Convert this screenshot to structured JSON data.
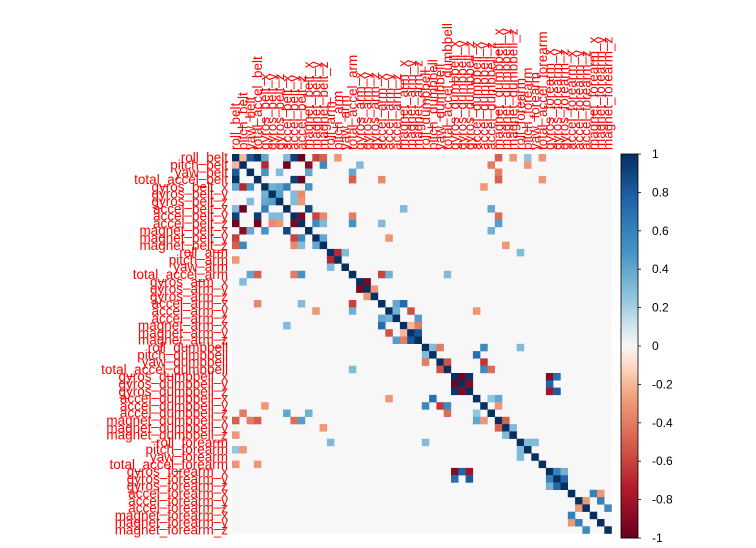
{
  "chart_data": {
    "type": "heatmap",
    "title": "",
    "variables": [
      "roll_belt",
      "pitch_belt",
      "yaw_belt",
      "total_accel_belt",
      "gyros_belt_x",
      "gyros_belt_y",
      "gyros_belt_z",
      "accel_belt_x",
      "accel_belt_y",
      "accel_belt_z",
      "magnet_belt_x",
      "magnet_belt_y",
      "magnet_belt_z",
      "roll_arm",
      "pitch_arm",
      "yaw_arm",
      "total_accel_arm",
      "gyros_arm_x",
      "gyros_arm_y",
      "gyros_arm_z",
      "accel_arm_x",
      "accel_arm_y",
      "accel_arm_z",
      "magnet_arm_x",
      "magnet_arm_y",
      "magnet_arm_z",
      "roll_dumbbell",
      "pitch_dumbbell",
      "yaw_dumbbell",
      "total_accel_dumbbell",
      "gyros_dumbbell_x",
      "gyros_dumbbell_y",
      "gyros_dumbbell_z",
      "accel_dumbbell_x",
      "accel_dumbbell_y",
      "accel_dumbbell_z",
      "magnet_dumbbell_x",
      "magnet_dumbbell_y",
      "magnet_dumbbell_z",
      "roll_forearm",
      "pitch_forearm",
      "yaw_forearm",
      "total_accel_forearm",
      "gyros_forearm_x",
      "gyros_forearm_y",
      "gyros_forearm_z",
      "accel_forearm_x",
      "accel_forearm_y",
      "accel_forearm_z",
      "magnet_forearm_x",
      "magnet_forearm_y",
      "magnet_forearm_z"
    ],
    "correlations": [
      {
        "row": 0,
        "col": 2,
        "value": 0.8
      },
      {
        "row": 0,
        "col": 3,
        "value": 0.98
      },
      {
        "row": 0,
        "col": 9,
        "value": -0.99
      },
      {
        "row": 0,
        "col": 8,
        "value": 0.92
      },
      {
        "row": 0,
        "col": 7,
        "value": 0.3
      },
      {
        "row": 0,
        "col": 11,
        "value": -0.6
      },
      {
        "row": 0,
        "col": 12,
        "value": -0.5
      },
      {
        "row": 0,
        "col": 4,
        "value": 0.4
      },
      {
        "row": 0,
        "col": 1,
        "value": -0.2
      },
      {
        "row": 3,
        "col": 8,
        "value": 0.93
      },
      {
        "row": 3,
        "col": 9,
        "value": -0.97
      },
      {
        "row": 8,
        "col": 9,
        "value": -0.93
      },
      {
        "row": 1,
        "col": 7,
        "value": -0.97
      },
      {
        "row": 1,
        "col": 10,
        "value": -0.88
      },
      {
        "row": 1,
        "col": 4,
        "value": -0.7
      },
      {
        "row": 7,
        "col": 10,
        "value": 0.89
      },
      {
        "row": 1,
        "col": 12,
        "value": 0.55
      },
      {
        "row": 2,
        "col": 4,
        "value": 0.5
      },
      {
        "row": 2,
        "col": 10,
        "value": 0.4
      },
      {
        "row": 2,
        "col": 6,
        "value": 0.3
      },
      {
        "row": 4,
        "col": 5,
        "value": 0.35
      },
      {
        "row": 4,
        "col": 6,
        "value": 0.4
      },
      {
        "row": 5,
        "col": 6,
        "value": 0.45
      },
      {
        "row": 4,
        "col": 7,
        "value": 0.6
      },
      {
        "row": 4,
        "col": 10,
        "value": 0.5
      },
      {
        "row": 5,
        "col": 8,
        "value": 0.3
      },
      {
        "row": 5,
        "col": 9,
        "value": -0.35
      },
      {
        "row": 6,
        "col": 8,
        "value": 0.3
      },
      {
        "row": 6,
        "col": 9,
        "value": -0.3
      },
      {
        "row": 11,
        "col": 12,
        "value": 0.4
      },
      {
        "row": 8,
        "col": 11,
        "value": -0.6
      },
      {
        "row": 9,
        "col": 11,
        "value": 0.55
      },
      {
        "row": 8,
        "col": 12,
        "value": -0.35
      },
      {
        "row": 9,
        "col": 12,
        "value": 0.3
      },
      {
        "row": 13,
        "col": 14,
        "value": -0.7
      },
      {
        "row": 13,
        "col": 15,
        "value": 0.3
      },
      {
        "row": 16,
        "col": 20,
        "value": -0.6
      },
      {
        "row": 16,
        "col": 21,
        "value": 0.35
      },
      {
        "row": 17,
        "col": 18,
        "value": -0.92
      },
      {
        "row": 18,
        "col": 19,
        "value": -0.3
      },
      {
        "row": 20,
        "col": 23,
        "value": 0.72
      },
      {
        "row": 20,
        "col": 22,
        "value": 0.4
      },
      {
        "row": 21,
        "col": 22,
        "value": 0.35
      },
      {
        "row": 21,
        "col": 24,
        "value": -0.55
      },
      {
        "row": 22,
        "col": 25,
        "value": 0.45
      },
      {
        "row": 23,
        "col": 25,
        "value": -0.4
      },
      {
        "row": 23,
        "col": 24,
        "value": -0.2
      },
      {
        "row": 24,
        "col": 25,
        "value": 0.82
      },
      {
        "row": 26,
        "col": 27,
        "value": 0.3
      },
      {
        "row": 26,
        "col": 28,
        "value": -0.4
      },
      {
        "row": 28,
        "col": 29,
        "value": -0.55
      },
      {
        "row": 28,
        "col": 34,
        "value": -0.65
      },
      {
        "row": 27,
        "col": 33,
        "value": 0.7
      },
      {
        "row": 26,
        "col": 34,
        "value": 0.55
      },
      {
        "row": 29,
        "col": 34,
        "value": 0.55
      },
      {
        "row": 29,
        "col": 35,
        "value": -0.45
      },
      {
        "row": 30,
        "col": 31,
        "value": -0.97
      },
      {
        "row": 31,
        "col": 32,
        "value": -0.9
      },
      {
        "row": 30,
        "col": 32,
        "value": 0.97
      },
      {
        "row": 30,
        "col": 43,
        "value": -0.9
      },
      {
        "row": 30,
        "col": 44,
        "value": 0.7
      },
      {
        "row": 31,
        "col": 43,
        "value": 0.75
      },
      {
        "row": 32,
        "col": 43,
        "value": -0.8
      },
      {
        "row": 32,
        "col": 44,
        "value": 0.8
      },
      {
        "row": 33,
        "col": 35,
        "value": 0.25
      },
      {
        "row": 33,
        "col": 36,
        "value": 0.4
      },
      {
        "row": 34,
        "col": 36,
        "value": -0.3
      },
      {
        "row": 36,
        "col": 37,
        "value": -0.5
      },
      {
        "row": 37,
        "col": 38,
        "value": 0.3
      },
      {
        "row": 39,
        "col": 40,
        "value": 0.3
      },
      {
        "row": 39,
        "col": 41,
        "value": 0.3
      },
      {
        "row": 43,
        "col": 44,
        "value": 0.6
      },
      {
        "row": 44,
        "col": 45,
        "value": 0.75
      },
      {
        "row": 43,
        "col": 45,
        "value": 0.35
      },
      {
        "row": 46,
        "col": 49,
        "value": 0.6
      },
      {
        "row": 47,
        "col": 50,
        "value": 0.6
      },
      {
        "row": 47,
        "col": 48,
        "value": -0.3
      },
      {
        "row": 48,
        "col": 51,
        "value": 0.55
      },
      {
        "row": 46,
        "col": 50,
        "value": -0.3
      },
      {
        "row": 2,
        "col": 36,
        "value": -0.4
      },
      {
        "row": 0,
        "col": 36,
        "value": -0.5
      },
      {
        "row": 3,
        "col": 36,
        "value": -0.5
      },
      {
        "row": 7,
        "col": 35,
        "value": 0.4
      },
      {
        "row": 1,
        "col": 35,
        "value": -0.4
      },
      {
        "row": 0,
        "col": 38,
        "value": -0.3
      },
      {
        "row": 8,
        "col": 36,
        "value": -0.45
      },
      {
        "row": 9,
        "col": 36,
        "value": 0.45
      },
      {
        "row": 4,
        "col": 34,
        "value": -0.3
      },
      {
        "row": 10,
        "col": 35,
        "value": 0.35
      },
      {
        "row": 12,
        "col": 37,
        "value": -0.3
      },
      {
        "row": 0,
        "col": 14,
        "value": -0.3
      },
      {
        "row": 1,
        "col": 17,
        "value": 0.3
      },
      {
        "row": 3,
        "col": 20,
        "value": -0.35
      },
      {
        "row": 7,
        "col": 23,
        "value": 0.3
      },
      {
        "row": 9,
        "col": 20,
        "value": 0.3
      },
      {
        "row": 2,
        "col": 16,
        "value": 0.4
      },
      {
        "row": 3,
        "col": 16,
        "value": -0.5
      },
      {
        "row": 8,
        "col": 16,
        "value": -0.4
      },
      {
        "row": 9,
        "col": 16,
        "value": 0.5
      },
      {
        "row": 11,
        "col": 21,
        "value": -0.3
      },
      {
        "row": 0,
        "col": 42,
        "value": -0.3
      },
      {
        "row": 3,
        "col": 42,
        "value": -0.3
      },
      {
        "row": 1,
        "col": 40,
        "value": -0.3
      },
      {
        "row": 0,
        "col": 40,
        "value": 0.25
      },
      {
        "row": 26,
        "col": 39,
        "value": 0.3
      },
      {
        "row": 21,
        "col": 33,
        "value": -0.3
      },
      {
        "row": 16,
        "col": 29,
        "value": 0.3
      },
      {
        "row": 13,
        "col": 39,
        "value": 0.3
      }
    ],
    "diagonal_value": 1,
    "color_scale": {
      "min": -1,
      "max": 1,
      "ticks": [
        1,
        0.8,
        0.6,
        0.4,
        0.2,
        0,
        -0.2,
        -0.4,
        -0.6,
        -0.8,
        -1
      ],
      "negative_color": "#67001F",
      "neutral_color": "#F7F7F7",
      "positive_color": "#053061"
    },
    "label_color": "#FF0000",
    "grid": false,
    "legend": "right"
  }
}
